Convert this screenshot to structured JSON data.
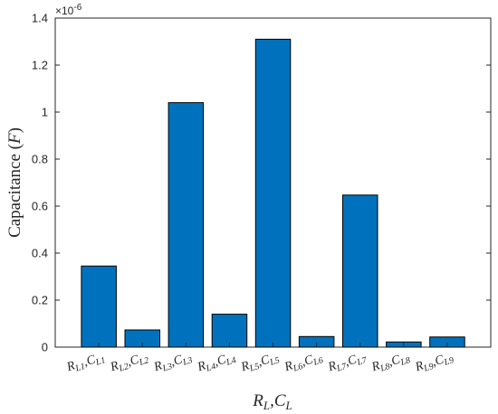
{
  "chart_data": {
    "type": "bar",
    "categories": [
      {
        "r": "R",
        "rsub": "L1",
        "c": "C",
        "csub": "L1"
      },
      {
        "r": "R",
        "rsub": "L2",
        "c": "C",
        "csub": "L2"
      },
      {
        "r": "R",
        "rsub": "L3",
        "c": "C",
        "csub": "L3"
      },
      {
        "r": "R",
        "rsub": "L4",
        "c": "C",
        "csub": "L4"
      },
      {
        "r": "R",
        "rsub": "L5",
        "c": "C",
        "csub": "L5"
      },
      {
        "r": "R",
        "rsub": "L6",
        "c": "C",
        "csub": "L6"
      },
      {
        "r": "R",
        "rsub": "L7",
        "c": "C",
        "csub": "L7"
      },
      {
        "r": "R",
        "rsub": "L8",
        "c": "C",
        "csub": "L8"
      },
      {
        "r": "R",
        "rsub": "L9",
        "c": "C",
        "csub": "L9"
      }
    ],
    "values": [
      0.345,
      0.073,
      1.04,
      0.14,
      1.31,
      0.045,
      0.647,
      0.022,
      0.043
    ],
    "value_multiplier": "×10",
    "value_exponent": "-6",
    "yticks": [
      "0",
      "0.2",
      "0.4",
      "0.6",
      "0.8",
      "1",
      "1.2",
      "1.4"
    ],
    "ylim": [
      0,
      1.4
    ],
    "ylabel": {
      "text": "Capacitance (",
      "var": "F",
      "close": ")"
    },
    "xlabel": {
      "r": "R",
      "rsub": "L",
      "sep": ",",
      "c": "C",
      "csub": "L"
    },
    "bar_color": "#0072BD",
    "edge_color": "#000000",
    "grid": false
  }
}
